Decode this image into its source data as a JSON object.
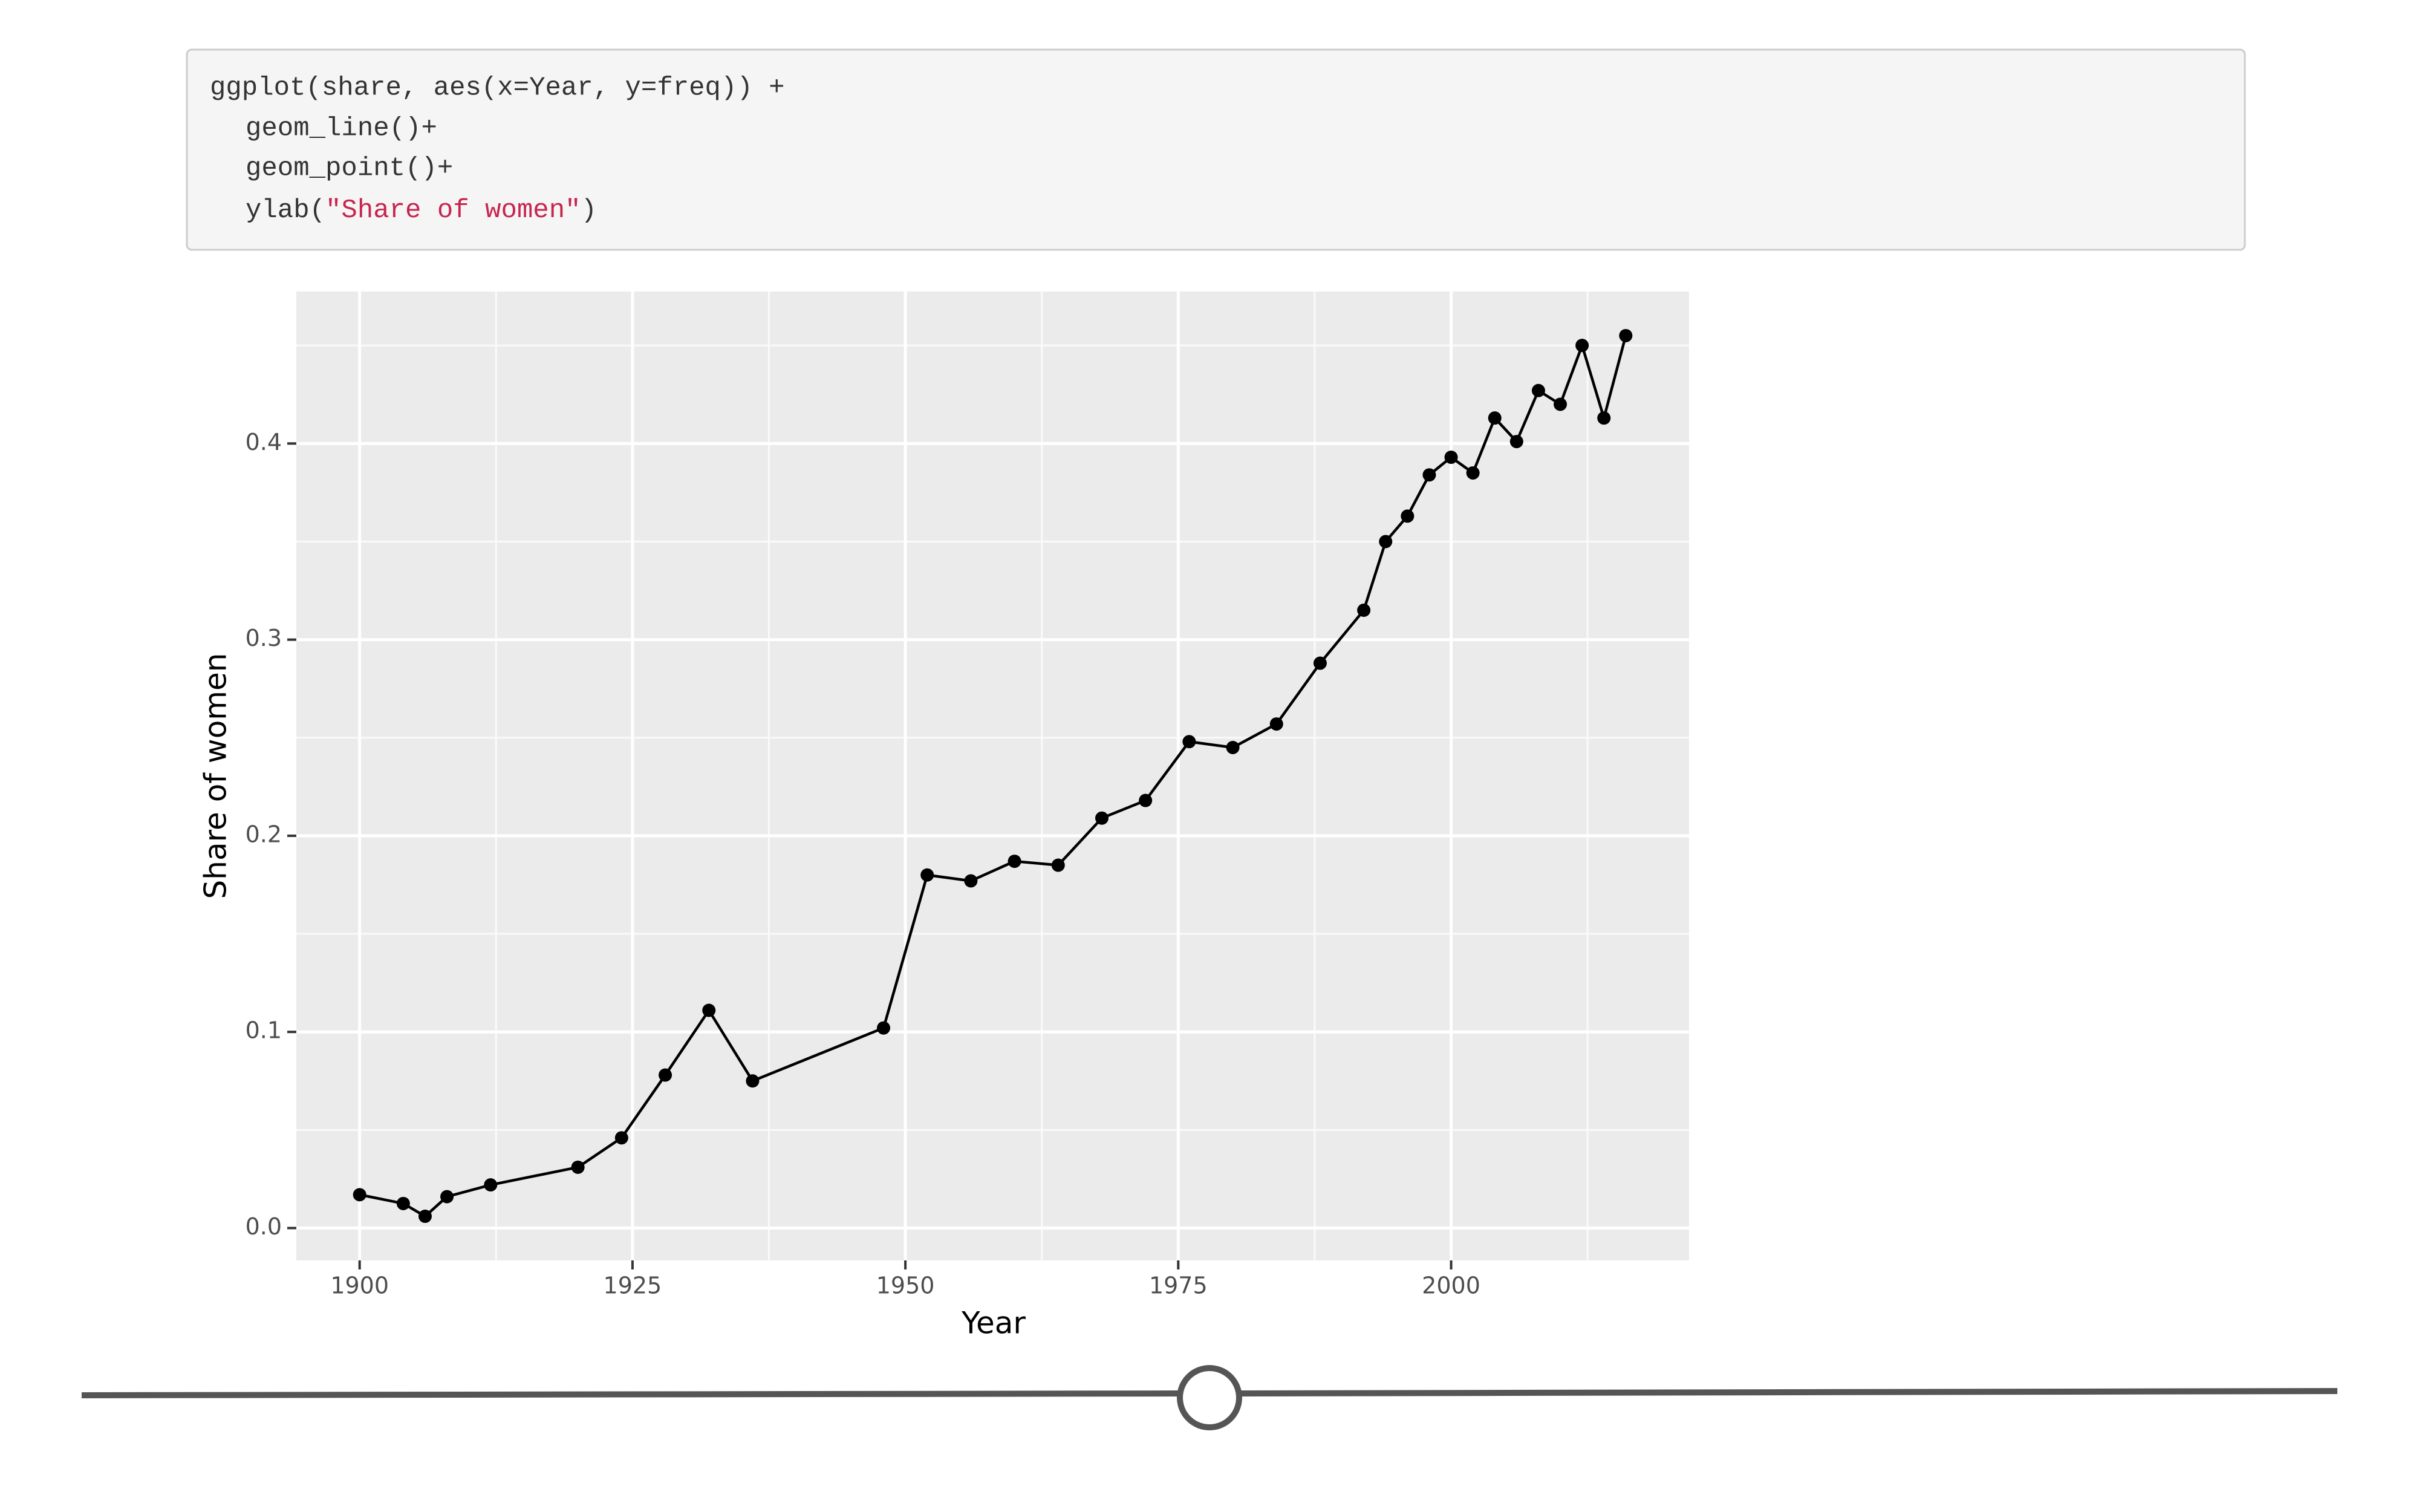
{
  "code": {
    "lines": [
      "ggplot(share, aes(x=Year, y=freq)) +",
      "geom_line()+",
      "geom_point()+",
      [
        "ylab(",
        "\"Share of women\"",
        ")"
      ]
    ]
  },
  "chart_data": {
    "type": "line",
    "xlabel": "Year",
    "ylabel": "Share of women",
    "x": [
      1900,
      1904,
      1906,
      1908,
      1912,
      1920,
      1924,
      1928,
      1932,
      1936,
      1948,
      1952,
      1956,
      1960,
      1964,
      1968,
      1972,
      1976,
      1980,
      1984,
      1988,
      1992,
      1994,
      1996,
      1998,
      2000,
      2002,
      2004,
      2006,
      2008,
      2010,
      2012,
      2014,
      2016
    ],
    "series": [
      {
        "color": "#000000",
        "values": [
          0.017,
          0.0125,
          0.006,
          0.016,
          0.022,
          0.031,
          0.046,
          0.078,
          0.111,
          0.075,
          0.102,
          0.18,
          0.177,
          0.187,
          0.185,
          0.209,
          0.218,
          0.248,
          0.245,
          0.257,
          0.288,
          0.315,
          0.35,
          0.363,
          0.384,
          0.393,
          0.385,
          0.413,
          0.401,
          0.427,
          0.42,
          0.45,
          0.413,
          0.455
        ]
      }
    ],
    "xlim": [
      1894.2,
      2021.8
    ],
    "ylim": [
      -0.0165,
      0.4775
    ],
    "xticks": [
      1900,
      1925,
      1950,
      1975,
      2000
    ],
    "yticks": [
      {
        "value": 0,
        "label": "0.0"
      },
      0.1,
      0.2,
      0.3,
      0.4
    ],
    "grid": true,
    "points": true
  }
}
